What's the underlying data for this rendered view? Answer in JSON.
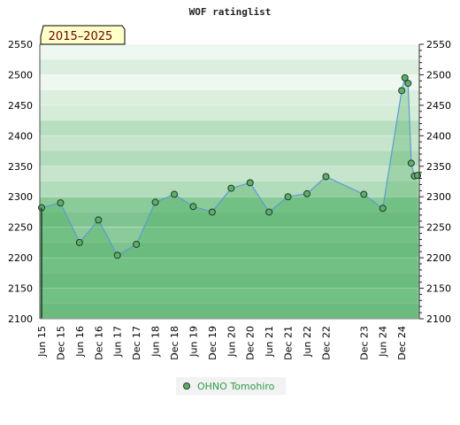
{
  "chart_data": {
    "type": "line",
    "title": "WOF ratinglist",
    "period_badge": "2015–2025",
    "ylim": [
      2100,
      2550
    ],
    "y_ticks": [
      "2100",
      "2150",
      "2200",
      "2250",
      "2300",
      "2350",
      "2400",
      "2450",
      "2500",
      "2550"
    ],
    "y_tick_values": [
      2100,
      2150,
      2200,
      2250,
      2300,
      2350,
      2400,
      2450,
      2500,
      2550
    ],
    "categories": [
      "Jun 15",
      "Dec 15",
      "Jun 16",
      "Dec 16",
      "Jun 17",
      "Dec 17",
      "Jun 18",
      "Dec 18",
      "Jun 19",
      "Dec 19",
      "Jun 20",
      "Dec 20",
      "Jun 21",
      "Dec 21",
      "Jun 22",
      "Dec 22",
      "Dec 23",
      "Jun 24",
      "Dec 24"
    ],
    "legend_position": "bottom-center",
    "grid": true,
    "series": [
      {
        "name": "OHNO Tomohiro",
        "color": "#2e9a4a",
        "points": [
          {
            "x": "2015-06",
            "y": 2282
          },
          {
            "x": "2015-12",
            "y": 2290
          },
          {
            "x": "2016-06",
            "y": 2225
          },
          {
            "x": "2016-12",
            "y": 2262
          },
          {
            "x": "2017-06",
            "y": 2204
          },
          {
            "x": "2017-12",
            "y": 2222
          },
          {
            "x": "2018-06",
            "y": 2291
          },
          {
            "x": "2018-12",
            "y": 2304
          },
          {
            "x": "2019-06",
            "y": 2284
          },
          {
            "x": "2019-12",
            "y": 2275
          },
          {
            "x": "2020-06",
            "y": 2314
          },
          {
            "x": "2020-12",
            "y": 2323
          },
          {
            "x": "2021-06",
            "y": 2275
          },
          {
            "x": "2021-12",
            "y": 2300
          },
          {
            "x": "2022-06",
            "y": 2305
          },
          {
            "x": "2022-12",
            "y": 2333
          },
          {
            "x": "2023-12",
            "y": 2304
          },
          {
            "x": "2024-06",
            "y": 2281
          },
          {
            "x": "2024-12",
            "y": 2474
          },
          {
            "x": "2025-01",
            "y": 2495
          },
          {
            "x": "2025-02",
            "y": 2486
          },
          {
            "x": "2025-03",
            "y": 2355
          },
          {
            "x": "2025-04",
            "y": 2334
          },
          {
            "x": "2025-05",
            "y": 2335
          }
        ]
      }
    ]
  }
}
